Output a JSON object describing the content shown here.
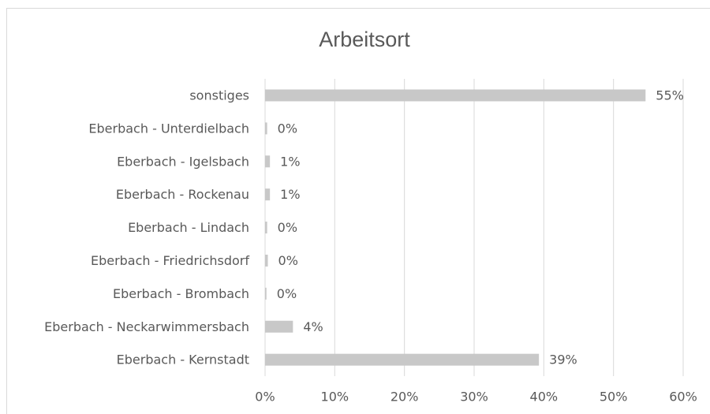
{
  "chart_data": {
    "type": "hbar",
    "title": "Arbeitsort",
    "categories": [
      "sonstiges",
      "Eberbach - Unterdielbach",
      "Eberbach - Igelsbach",
      "Eberbach - Rockenau",
      "Eberbach - Lindach",
      "Eberbach - Friedrichsdorf",
      "Eberbach - Brombach",
      "Eberbach - Neckarwimmersbach",
      "Eberbach - Kernstadt"
    ],
    "values": [
      54.6,
      0.3,
      0.7,
      0.7,
      0.3,
      0.4,
      0.2,
      4.0,
      39.3
    ],
    "value_labels": [
      "55%",
      "0%",
      "1%",
      "1%",
      "0%",
      "0%",
      "0%",
      "4%",
      "39%"
    ],
    "color": "#c8c8c8",
    "xlim": [
      0,
      60
    ],
    "xticks": [
      {
        "value": 0,
        "label": "0%"
      },
      {
        "value": 10,
        "label": "10%"
      },
      {
        "value": 20,
        "label": "20%"
      },
      {
        "value": 30,
        "label": "30%"
      },
      {
        "value": 40,
        "label": "40%"
      },
      {
        "value": 50,
        "label": "50%"
      },
      {
        "value": 60,
        "label": "60%"
      }
    ],
    "grid": true
  }
}
